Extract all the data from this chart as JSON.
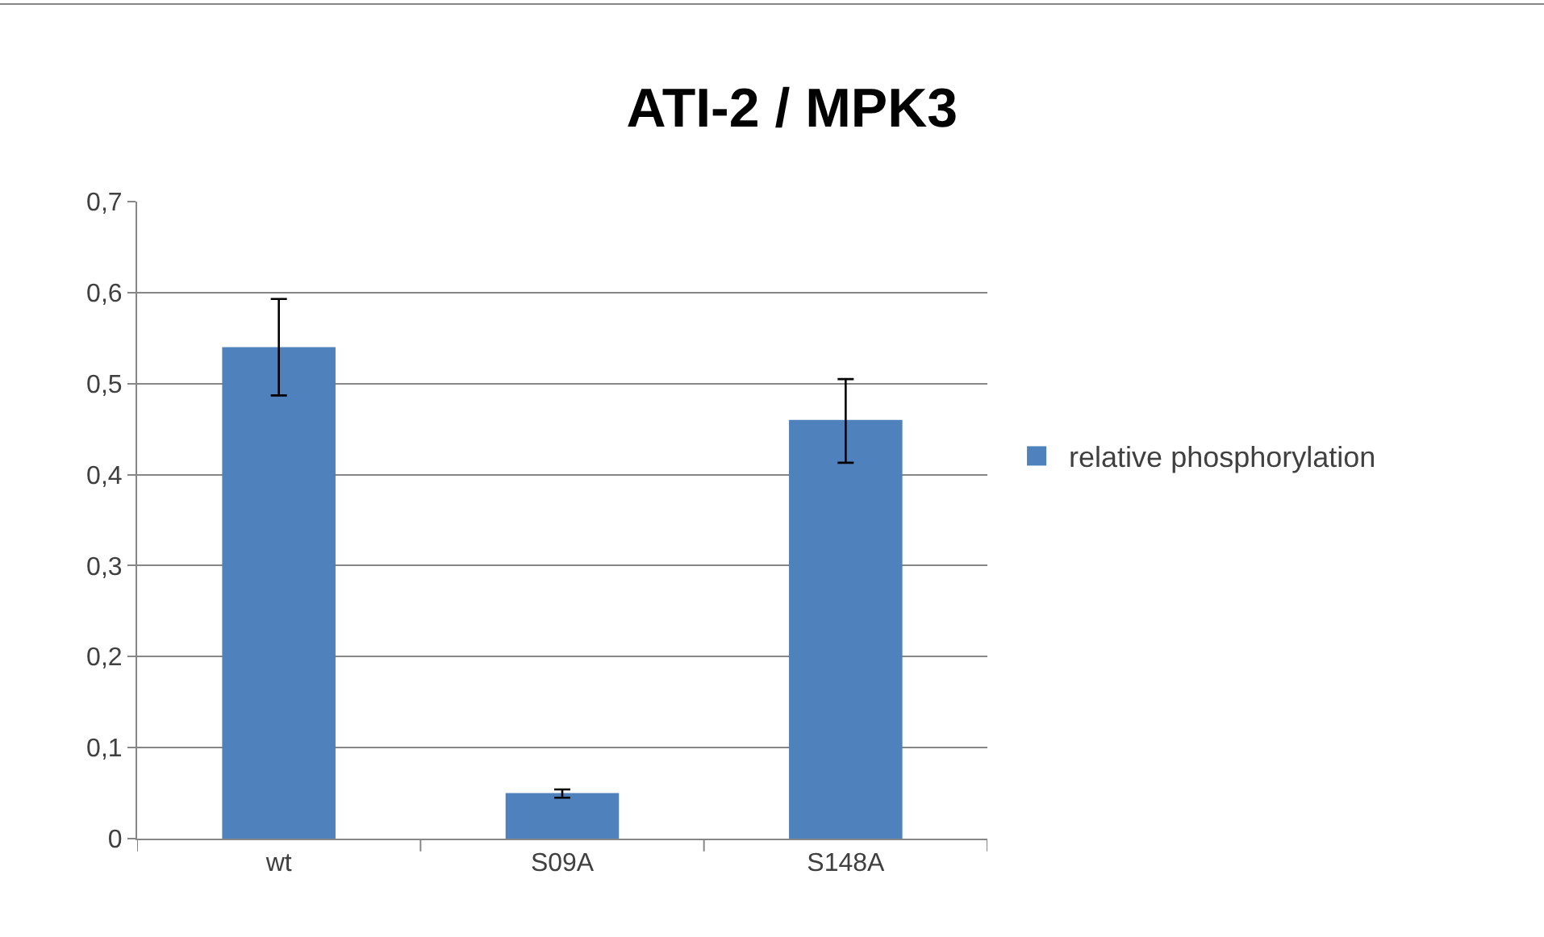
{
  "chart_data": {
    "type": "bar",
    "title": "ATI-2 / MPK3",
    "categories": [
      "wt",
      "S09A",
      "S148A"
    ],
    "series": [
      {
        "name": "relative phosphorylation",
        "color": "#4f81bd",
        "values": [
          0.54,
          0.05,
          0.46
        ],
        "errors": [
          [
            0.487,
            0.593
          ],
          [
            0.045,
            0.054
          ],
          [
            0.413,
            0.505
          ]
        ]
      }
    ],
    "ylim": [
      0,
      0.7
    ],
    "yticks": [
      {
        "value": 0,
        "label": "0"
      },
      {
        "value": 0.1,
        "label": "0,1"
      },
      {
        "value": 0.2,
        "label": "0,2"
      },
      {
        "value": 0.3,
        "label": "0,3"
      },
      {
        "value": 0.4,
        "label": "0,4"
      },
      {
        "value": 0.5,
        "label": "0,5"
      },
      {
        "value": 0.6,
        "label": "0,6"
      },
      {
        "value": 0.7,
        "label": "0,7"
      }
    ],
    "grid": "y",
    "legend": "right"
  }
}
